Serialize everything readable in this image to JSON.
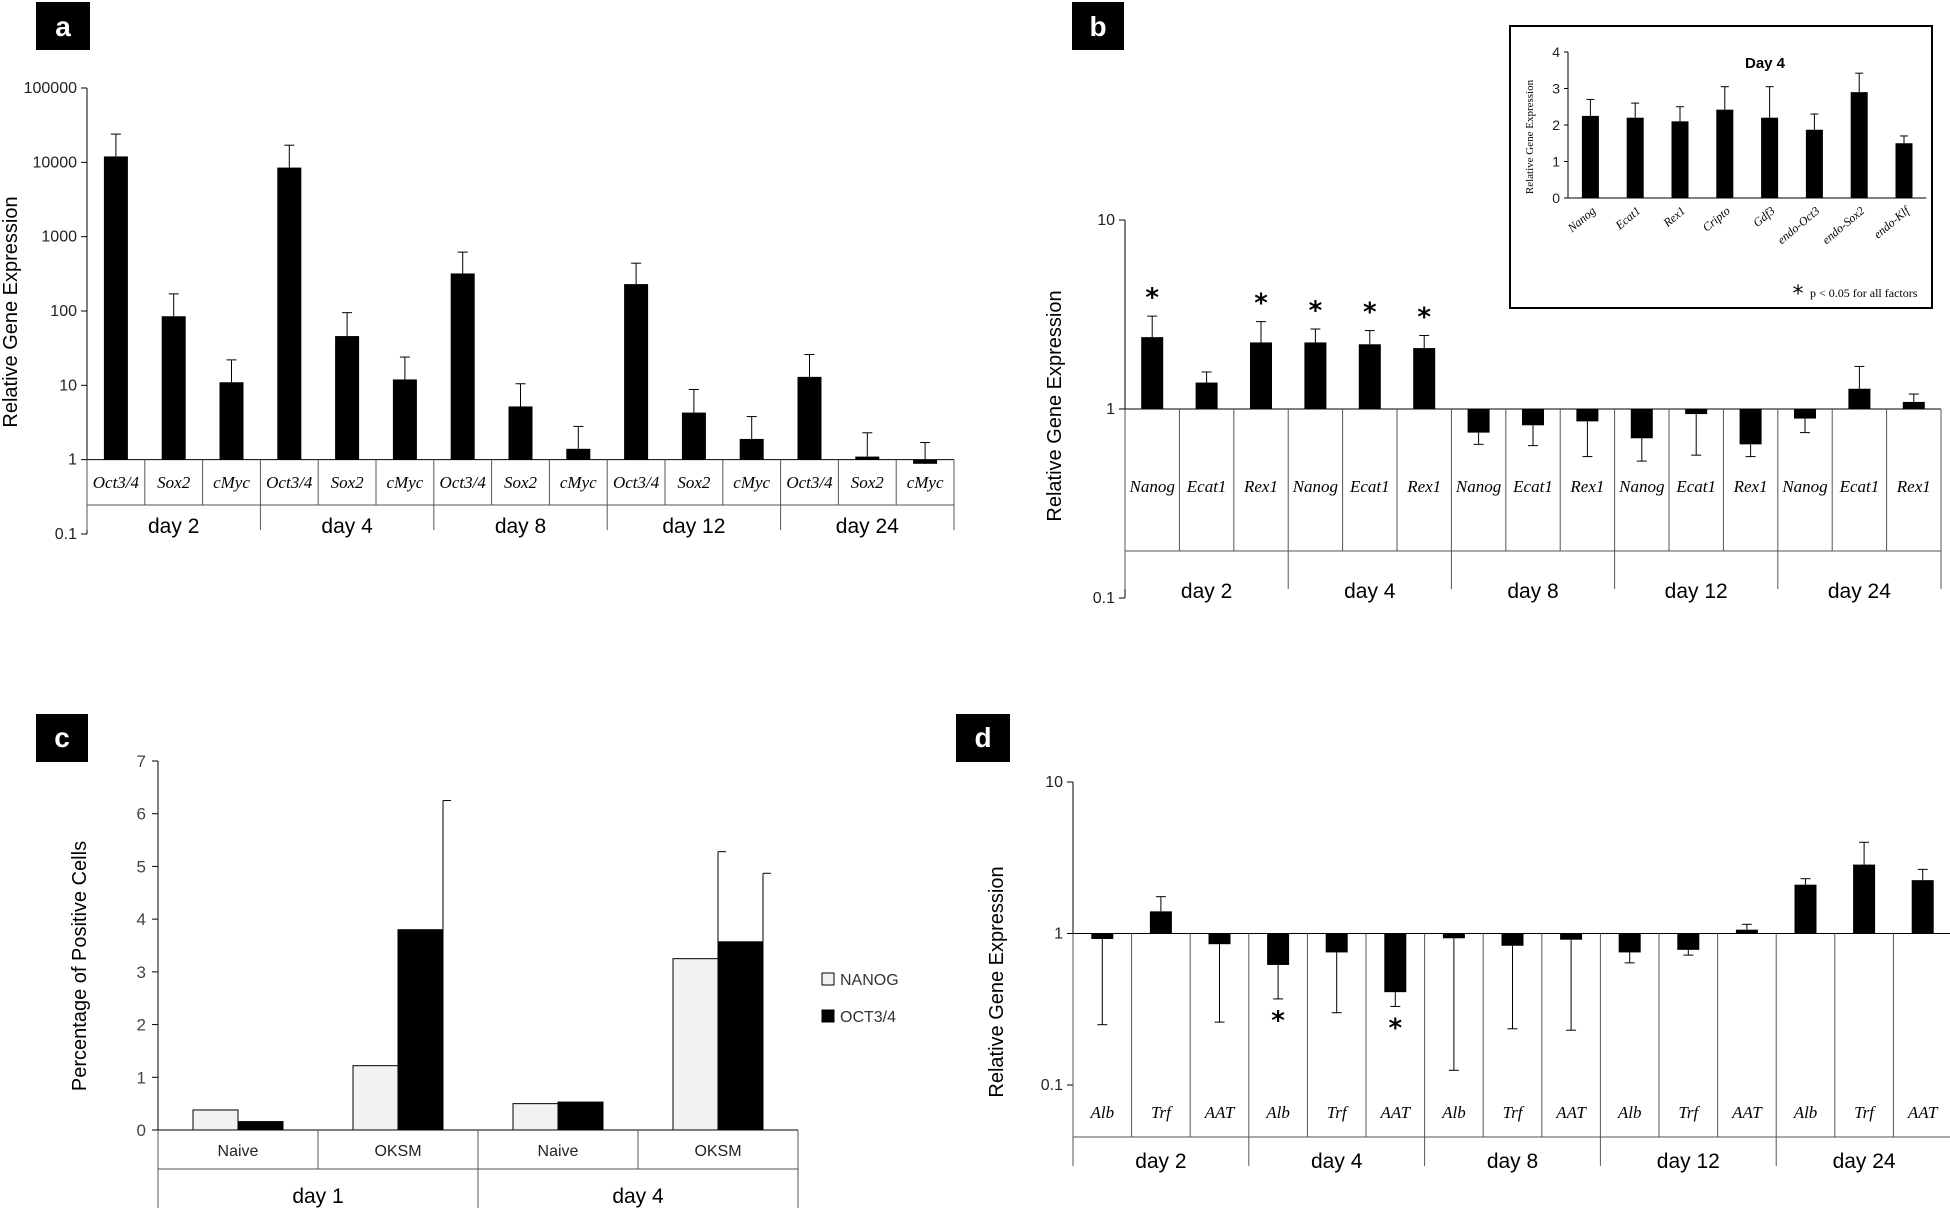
{
  "chart_data": [
    {
      "panel": "a",
      "type": "bar",
      "scale": "log",
      "ylabel": "Relative Gene Expression",
      "yticks": [
        "100000",
        "10000",
        "1000",
        "100",
        "10",
        "1",
        "0.1"
      ],
      "ylim": [
        0.1,
        100000
      ],
      "groups": [
        "day 2",
        "day 4",
        "day 8",
        "day 12",
        "day 24"
      ],
      "genes": [
        "Oct3/4",
        "Sox2",
        "cMyc"
      ],
      "values": [
        [
          12000,
          85,
          11
        ],
        [
          8500,
          46,
          12
        ],
        [
          320,
          5.2,
          1.4
        ],
        [
          230,
          4.3,
          1.9
        ],
        [
          13,
          1.1,
          0.88
        ]
      ],
      "errors": [
        [
          24000,
          170,
          22
        ],
        [
          17000,
          95,
          24
        ],
        [
          620,
          10.5,
          2.8
        ],
        [
          440,
          8.8,
          3.8
        ],
        [
          26,
          2.3,
          1.7
        ]
      ]
    },
    {
      "panel": "b",
      "type": "bar",
      "scale": "log",
      "ylabel": "Relative Gene Expression",
      "yticks": [
        "10",
        "1",
        "0.1"
      ],
      "ylim": [
        0.1,
        10
      ],
      "groups": [
        "day 2",
        "day 4",
        "day 8",
        "day 12",
        "day 24"
      ],
      "genes": [
        "Nanog",
        "Ecat1",
        "Rex1"
      ],
      "values": [
        [
          2.4,
          1.38,
          2.25
        ],
        [
          2.25,
          2.2,
          2.1
        ],
        [
          0.75,
          0.82,
          0.86
        ],
        [
          0.7,
          0.94,
          0.65
        ],
        [
          0.89,
          1.28,
          1.09
        ]
      ],
      "errors": [
        [
          3.1,
          1.57,
          2.9
        ],
        [
          2.65,
          2.6,
          2.45
        ],
        [
          0.65,
          0.64,
          0.56
        ],
        [
          0.53,
          0.57,
          0.56
        ],
        [
          0.75,
          1.68,
          1.2
        ]
      ],
      "significant": [
        [
          true,
          false,
          true
        ],
        [
          true,
          true,
          true
        ],
        [
          false,
          false,
          false
        ],
        [
          false,
          false,
          false
        ],
        [
          false,
          false,
          false
        ]
      ],
      "star": "*",
      "inset": {
        "title": "Day 4",
        "ylabel": "Relative Gene Expression",
        "ylim": [
          0,
          4
        ],
        "yticks": [
          "4",
          "3",
          "2",
          "1",
          "0"
        ],
        "categories": [
          "Nanog",
          "Ecat1",
          "Rex1",
          "Cripto",
          "Gdf3",
          "endo-Oct3",
          "endo-Sox2",
          "endo-Klf"
        ],
        "values": [
          2.25,
          2.2,
          2.1,
          2.42,
          2.2,
          1.87,
          2.9,
          1.5
        ],
        "errors": [
          2.7,
          2.6,
          2.5,
          3.05,
          3.05,
          2.3,
          3.42,
          1.7
        ],
        "note_star": "*",
        "note": "p < 0.05 for all factors"
      }
    },
    {
      "panel": "c",
      "type": "bar",
      "scale": "linear",
      "ylabel": "Percentage of Positive Cells",
      "yticks": [
        "7",
        "6",
        "5",
        "4",
        "3",
        "2",
        "1",
        "0"
      ],
      "ylim": [
        0,
        7
      ],
      "groups": [
        "day 1",
        "day 4"
      ],
      "conditions": [
        "Naive",
        "OKSM",
        "Naive",
        "OKSM"
      ],
      "series": [
        {
          "name": "NANOG",
          "color": "#f2f2f2",
          "values": [
            0.38,
            1.22,
            0.5,
            3.25
          ],
          "errors": [
            0.38,
            1.72,
            0.5,
            5.28
          ]
        },
        {
          "name": "OCT3/4",
          "color": "#000000",
          "values": [
            0.16,
            3.8,
            0.53,
            3.57
          ],
          "errors": [
            0.16,
            6.25,
            0.53,
            4.87
          ]
        }
      ]
    },
    {
      "panel": "d",
      "type": "bar",
      "scale": "log",
      "ylabel": "Relative Gene Expression",
      "yticks": [
        "10",
        "1",
        "0.1"
      ],
      "ylim": [
        0.1,
        10
      ],
      "groups": [
        "day 2",
        "day 4",
        "day 8",
        "day 12",
        "day 24"
      ],
      "genes": [
        "Alb",
        "Trf",
        "AAT"
      ],
      "values": [
        [
          0.92,
          1.4,
          0.85
        ],
        [
          0.62,
          0.75,
          0.41
        ],
        [
          0.93,
          0.83,
          0.91
        ],
        [
          0.75,
          0.78,
          1.06
        ],
        [
          2.1,
          2.85,
          2.25
        ]
      ],
      "errors": [
        [
          0.25,
          1.75,
          0.26
        ],
        [
          0.37,
          0.3,
          0.33
        ],
        [
          0.125,
          0.235,
          0.23
        ],
        [
          0.64,
          0.72,
          1.15
        ],
        [
          2.3,
          4.0,
          2.65
        ]
      ],
      "significant": [
        [
          false,
          false,
          false
        ],
        [
          true,
          false,
          true
        ],
        [
          false,
          false,
          false
        ],
        [
          false,
          false,
          false
        ],
        [
          false,
          false,
          false
        ]
      ],
      "star": "*"
    }
  ]
}
